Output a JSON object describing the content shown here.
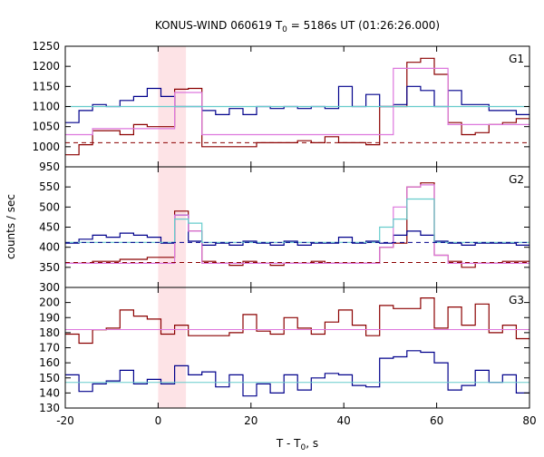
{
  "title_main": "KONUS-WIND 060619 T",
  "title_sub": "0",
  "title_rest": " = 5186s UT (01:26:26.000)",
  "ylabel": "counts / sec",
  "xlabel_main": "T - T",
  "xlabel_sub": "0",
  "xlabel_rest": ", s",
  "colors": {
    "dark_red": "#8b0000",
    "navy": "#00008b",
    "pink": "#dd77dd",
    "cyan": "#66cccc",
    "highlight": "#fde3e6",
    "axis": "#000000"
  },
  "chart_data": {
    "type": "line",
    "x_axis": {
      "range": [
        -20,
        80
      ],
      "ticks": [
        -20,
        0,
        20,
        40,
        60,
        80
      ],
      "tick_labels": [
        "-20",
        "0",
        "20",
        "40",
        "60",
        "80"
      ]
    },
    "highlight_interval": [
      0,
      6
    ],
    "bin_start": -20,
    "bin_width": 2.944,
    "panels": [
      {
        "label": "G1",
        "ylim": [
          950,
          1250
        ],
        "yticks": [
          950,
          1000,
          1050,
          1100,
          1150,
          1200,
          1250
        ],
        "series": [
          {
            "role": "rate",
            "color": "dark_red",
            "style": "step",
            "values": [
              980,
              1005,
              1040,
              1040,
              1030,
              1055,
              1050,
              1050,
              1143,
              1145,
              1000,
              1000,
              1000,
              1000,
              1010,
              1010,
              1010,
              1015,
              1010,
              1025,
              1010,
              1010,
              1005,
              1100,
              1100,
              1210,
              1220,
              1180,
              1060,
              1030,
              1035,
              1055,
              1060,
              1070,
              1065,
              1065,
              1070
            ]
          },
          {
            "role": "rate",
            "color": "navy",
            "style": "step",
            "values": [
              1060,
              1090,
              1105,
              1100,
              1115,
              1125,
              1145,
              1125,
              1100,
              1100,
              1090,
              1080,
              1095,
              1080,
              1100,
              1095,
              1100,
              1095,
              1100,
              1095,
              1150,
              1100,
              1130,
              1100,
              1105,
              1150,
              1140,
              1100,
              1140,
              1105,
              1105,
              1090,
              1090,
              1080,
              1070,
              1080,
              1085
            ]
          },
          {
            "role": "model",
            "color": "pink",
            "style": "step",
            "values": [
              1030,
              1030,
              1045,
              1045,
              1045,
              1045,
              1045,
              1045,
              1135,
              1135,
              1030,
              1030,
              1030,
              1030,
              1030,
              1030,
              1030,
              1030,
              1030,
              1030,
              1030,
              1030,
              1030,
              1030,
              1195,
              1195,
              1195,
              1195,
              1055,
              1055,
              1055,
              1055,
              1055,
              1055,
              1055,
              1055,
              1055
            ]
          },
          {
            "role": "model",
            "color": "cyan",
            "style": "step",
            "values": [
              1100,
              1100,
              1100,
              1100,
              1100,
              1100,
              1100,
              1100,
              1100,
              1100,
              1100,
              1100,
              1100,
              1100,
              1100,
              1100,
              1100,
              1100,
              1100,
              1100,
              1100,
              1100,
              1100,
              1100,
              1100,
              1100,
              1100,
              1100,
              1100,
              1100,
              1100,
              1100,
              1100,
              1100,
              1100,
              1100,
              1100
            ]
          },
          {
            "role": "background",
            "color": "dark_red",
            "style": "dashed",
            "value": 1010
          }
        ]
      },
      {
        "label": "G2",
        "ylim": [
          300,
          600
        ],
        "yticks": [
          300,
          350,
          400,
          450,
          500,
          550
        ],
        "series": [
          {
            "role": "rate",
            "color": "dark_red",
            "style": "step",
            "values": [
              360,
              360,
              365,
              365,
              370,
              370,
              375,
              375,
              490,
              440,
              365,
              360,
              355,
              365,
              360,
              355,
              360,
              360,
              365,
              360,
              360,
              360,
              360,
              400,
              410,
              550,
              560,
              380,
              365,
              350,
              360,
              360,
              365,
              365,
              370,
              365,
              355
            ]
          },
          {
            "role": "rate",
            "color": "navy",
            "style": "step",
            "values": [
              410,
              420,
              430,
              425,
              435,
              430,
              425,
              410,
              480,
              415,
              405,
              410,
              405,
              415,
              410,
              405,
              415,
              405,
              410,
              410,
              425,
              410,
              415,
              410,
              430,
              440,
              430,
              415,
              410,
              405,
              410,
              410,
              410,
              405,
              410,
              410,
              405
            ]
          },
          {
            "role": "model",
            "color": "pink",
            "style": "step",
            "values": [
              360,
              360,
              360,
              360,
              360,
              360,
              360,
              360,
              480,
              440,
              360,
              360,
              360,
              360,
              360,
              360,
              360,
              360,
              360,
              360,
              360,
              360,
              360,
              400,
              500,
              550,
              555,
              380,
              360,
              360,
              360,
              360,
              360,
              360,
              360,
              360,
              360
            ]
          },
          {
            "role": "model",
            "color": "cyan",
            "style": "step",
            "values": [
              412,
              412,
              412,
              412,
              412,
              412,
              412,
              412,
              470,
              460,
              412,
              412,
              412,
              412,
              412,
              412,
              412,
              412,
              412,
              412,
              412,
              412,
              412,
              450,
              470,
              520,
              520,
              412,
              412,
              412,
              412,
              412,
              412,
              412,
              412,
              412,
              412
            ]
          },
          {
            "role": "background",
            "color": "dark_red",
            "style": "dashed",
            "value": 362
          },
          {
            "role": "background",
            "color": "navy",
            "style": "dashed",
            "value": 412
          }
        ]
      },
      {
        "label": "G3",
        "ylim": [
          130,
          210
        ],
        "yticks": [
          130,
          140,
          150,
          160,
          170,
          180,
          190,
          200
        ],
        "series": [
          {
            "role": "rate",
            "color": "dark_red",
            "style": "step",
            "values": [
              179,
              173,
              182,
              183,
              195,
              191,
              189,
              179,
              185,
              178,
              178,
              178,
              180,
              192,
              181,
              179,
              190,
              183,
              179,
              187,
              195,
              185,
              178,
              198,
              196,
              196,
              203,
              183,
              197,
              185,
              199,
              180,
              185,
              176,
              192,
              174,
              191
            ]
          },
          {
            "role": "rate",
            "color": "navy",
            "style": "step",
            "values": [
              152,
              141,
              146,
              148,
              155,
              146,
              149,
              146,
              158,
              152,
              154,
              144,
              152,
              138,
              146,
              140,
              152,
              142,
              150,
              153,
              152,
              145,
              144,
              163,
              164,
              168,
              167,
              160,
              142,
              145,
              155,
              147,
              152,
              140,
              153,
              143,
              150
            ]
          },
          {
            "role": "model",
            "color": "pink",
            "style": "line",
            "value": 182
          },
          {
            "role": "model",
            "color": "cyan",
            "style": "line",
            "value": 147
          }
        ]
      }
    ]
  }
}
